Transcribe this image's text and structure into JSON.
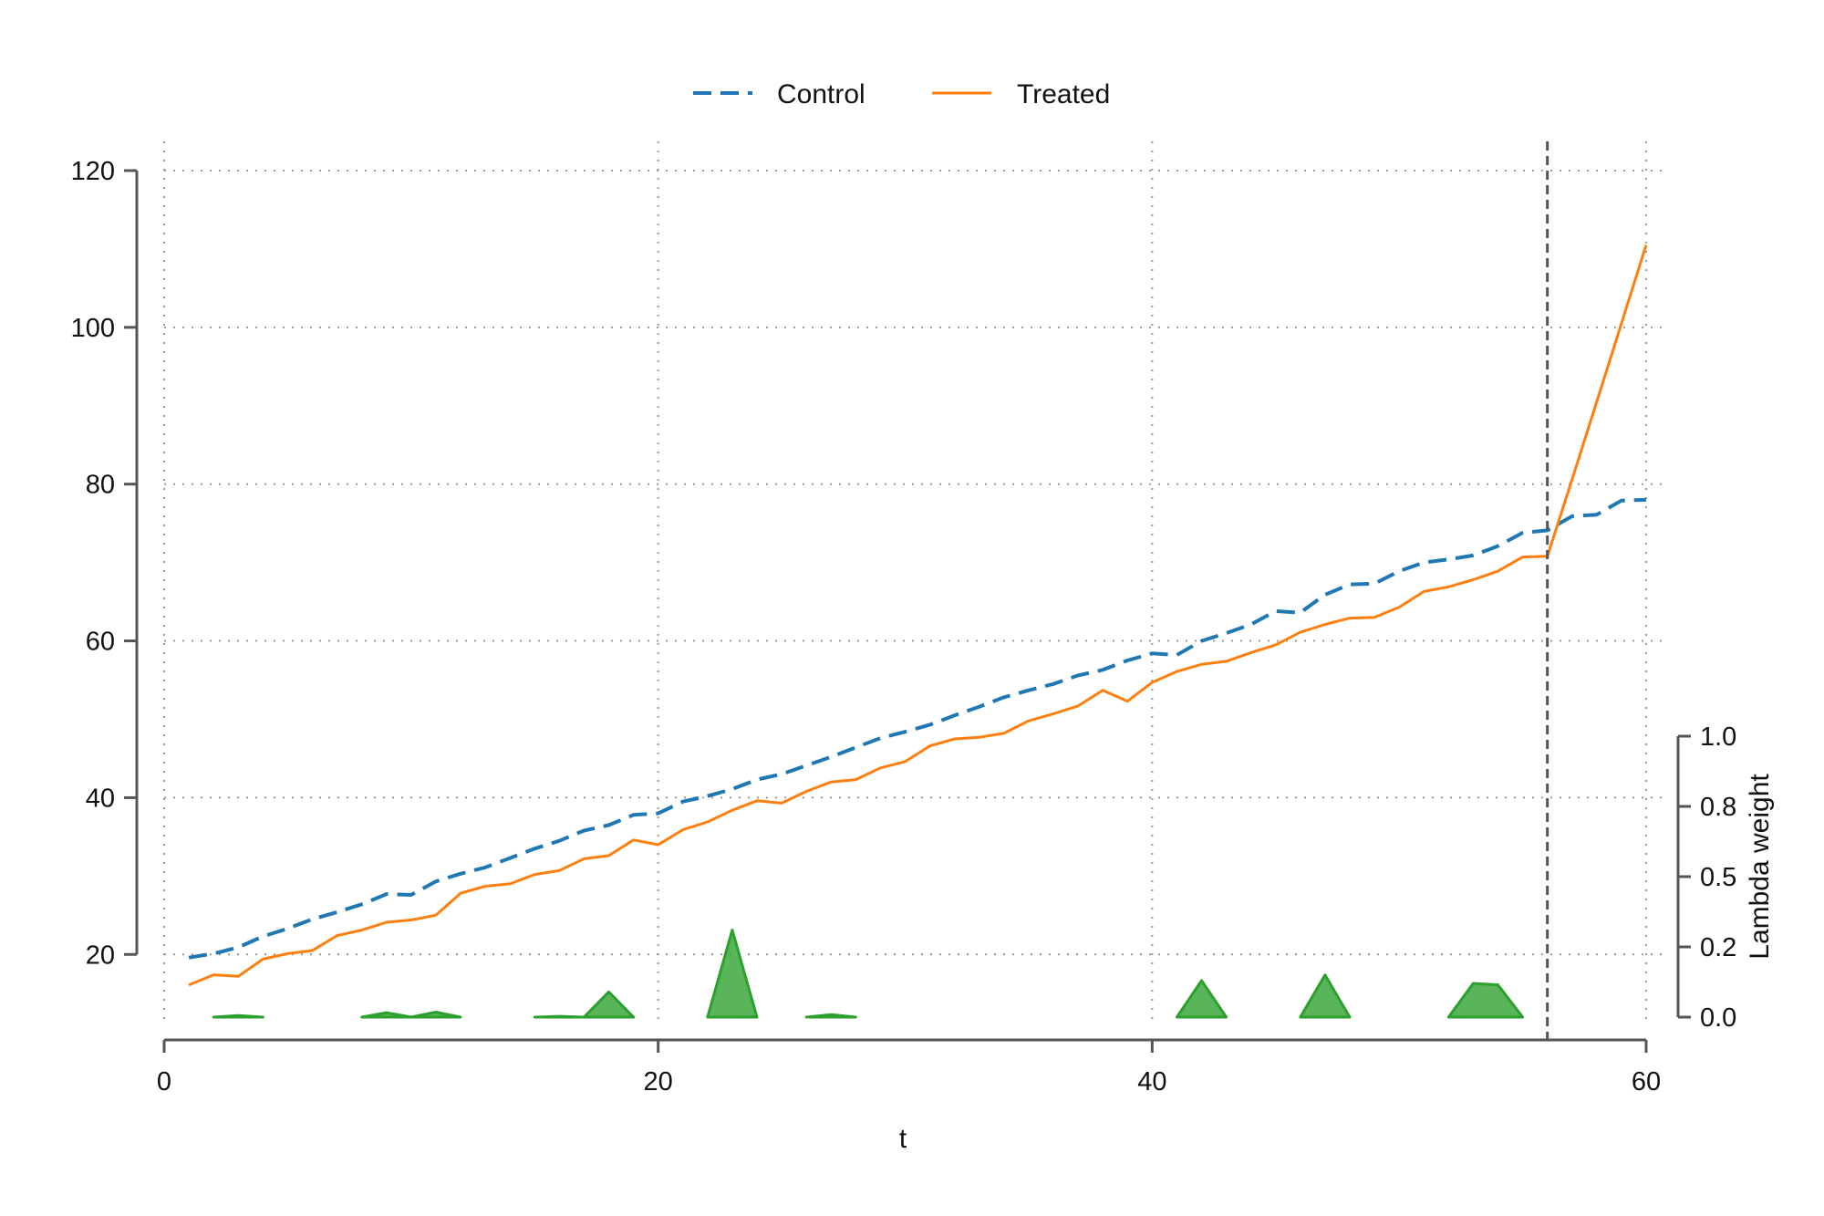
{
  "colors": {
    "control": "#1f77b4",
    "treated": "#ff7f0e",
    "lambda_fill": "#2ca02c",
    "axis": "#555555",
    "grid": "#9a9a9a",
    "treatment_line": "#555555"
  },
  "chart_data": {
    "type": "line",
    "title": "",
    "xlabel": "t",
    "ylabel": "",
    "y2label": "Lambda weight",
    "xlim": [
      0,
      60
    ],
    "ylim": [
      12,
      120
    ],
    "y2lim": [
      0,
      1.0
    ],
    "xticks": [
      "0",
      "20",
      "40",
      "60"
    ],
    "yticks": [
      "20",
      "40",
      "60",
      "80",
      "100",
      "120"
    ],
    "y2ticks": [
      "0.0",
      "0.2",
      "0.5",
      "0.8",
      "1.0"
    ],
    "grid": true,
    "grid_style": "dotted",
    "legend_position": "top-center",
    "treatment_time": 56,
    "x": [
      1,
      2,
      3,
      4,
      5,
      6,
      7,
      8,
      9,
      10,
      11,
      12,
      13,
      14,
      15,
      16,
      17,
      18,
      19,
      20,
      21,
      22,
      23,
      24,
      25,
      26,
      27,
      28,
      29,
      30,
      31,
      32,
      33,
      34,
      35,
      36,
      37,
      38,
      39,
      40,
      41,
      42,
      43,
      44,
      45,
      46,
      47,
      48,
      49,
      50,
      51,
      52,
      53,
      54,
      55,
      56,
      57,
      58,
      59,
      60
    ],
    "series": [
      {
        "name": "Control",
        "style": "dashed",
        "values": [
          19.6,
          20.1,
          20.9,
          22.3,
          23.3,
          24.5,
          25.4,
          26.4,
          27.7,
          27.6,
          29.3,
          30.3,
          31.1,
          32.3,
          33.5,
          34.5,
          35.8,
          36.5,
          37.8,
          38.0,
          39.5,
          40.2,
          41.1,
          42.3,
          43.0,
          44.1,
          45.2,
          46.4,
          47.6,
          48.4,
          49.3,
          50.5,
          51.6,
          52.8,
          53.7,
          54.5,
          55.6,
          56.3,
          57.5,
          58.4,
          58.2,
          60.0,
          61.0,
          62.1,
          63.8,
          63.6,
          65.9,
          67.2,
          67.3,
          68.9,
          70.0,
          70.4,
          70.9,
          72.1,
          73.8,
          74.1,
          75.9,
          76.1,
          77.9,
          78.0
        ]
      },
      {
        "name": "Treated",
        "style": "solid",
        "values": [
          16.1,
          17.4,
          17.2,
          19.4,
          20.1,
          20.5,
          22.4,
          23.1,
          24.1,
          24.4,
          25.0,
          27.8,
          28.7,
          29.0,
          30.2,
          30.7,
          32.2,
          32.6,
          34.6,
          34.0,
          35.9,
          36.9,
          38.4,
          39.6,
          39.3,
          40.8,
          42.0,
          42.3,
          43.8,
          44.6,
          46.6,
          47.5,
          47.7,
          48.2,
          49.8,
          50.7,
          51.7,
          53.7,
          52.3,
          54.7,
          56.1,
          57.0,
          57.4,
          58.5,
          59.5,
          61.1,
          62.1,
          62.9,
          63.0,
          64.3,
          66.3,
          66.9,
          67.8,
          68.9,
          70.7,
          70.8,
          80.6,
          90.5,
          100.5,
          110.5
        ]
      }
    ],
    "lambda_weights": [
      {
        "x": [
          2,
          3,
          4
        ],
        "values": [
          0,
          0.006,
          0
        ]
      },
      {
        "x": [
          8,
          9,
          10
        ],
        "values": [
          0,
          0.016,
          0
        ]
      },
      {
        "x": [
          10,
          11,
          12
        ],
        "values": [
          0,
          0.018,
          0
        ]
      },
      {
        "x": [
          15,
          16,
          17
        ],
        "values": [
          0,
          0.003,
          0
        ]
      },
      {
        "x": [
          17,
          18,
          19
        ],
        "values": [
          0,
          0.09,
          0
        ]
      },
      {
        "x": [
          22,
          23,
          24
        ],
        "values": [
          0,
          0.31,
          0
        ]
      },
      {
        "x": [
          26,
          27,
          28
        ],
        "values": [
          0,
          0.009,
          0
        ]
      },
      {
        "x": [
          41,
          42,
          43
        ],
        "values": [
          0,
          0.13,
          0
        ]
      },
      {
        "x": [
          46,
          47,
          48
        ],
        "values": [
          0,
          0.15,
          0
        ]
      },
      {
        "x": [
          52,
          53,
          54,
          55
        ],
        "values": [
          0,
          0.12,
          0.115,
          0
        ]
      }
    ]
  }
}
